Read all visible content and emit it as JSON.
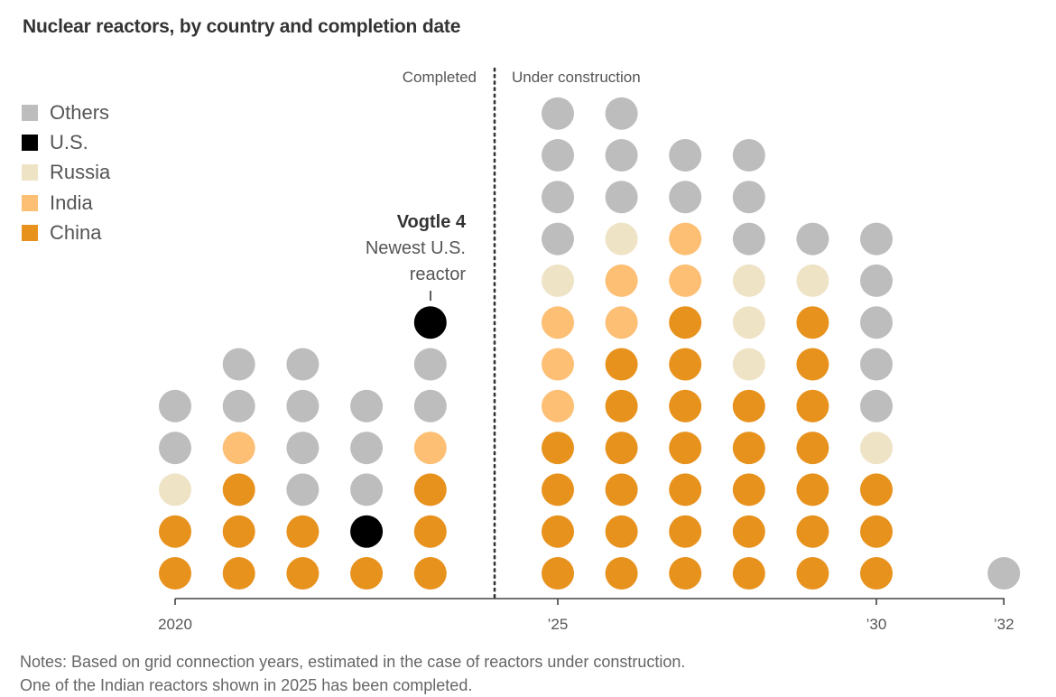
{
  "title": "Nuclear reactors, by country and completion date",
  "legend": [
    {
      "label": "Others",
      "color": "#bdbdbd",
      "icon": "square-swatch"
    },
    {
      "label": "U.S.",
      "color": "#000000",
      "icon": "square-swatch"
    },
    {
      "label": "Russia",
      "color": "#efe3c6",
      "icon": "square-swatch"
    },
    {
      "label": "India",
      "color": "#fcbf74",
      "icon": "square-swatch"
    },
    {
      "label": "China",
      "color": "#e8921e",
      "icon": "square-swatch"
    }
  ],
  "phases": {
    "completed_label": "Completed",
    "under_construction_label": "Under construction",
    "divider_after_year": 2024
  },
  "annotation": {
    "title": "Vogtle 4",
    "line1": "Newest U.S.",
    "line2": "reactor",
    "year": 2024,
    "country": "U.S."
  },
  "notes": {
    "line1": "Notes: Based on grid connection years, estimated in the case of reactors under construction.",
    "line2": "One of the Indian reactors shown in 2025 has been completed."
  },
  "chart_data": {
    "type": "dot-stack",
    "title": "Nuclear reactors, by country and completion date",
    "xlabel": "",
    "ylabel": "",
    "x_range": [
      2020,
      2032
    ],
    "x_ticks": [
      {
        "year": 2020,
        "label": "2020"
      },
      {
        "year": 2025,
        "label": "’25"
      },
      {
        "year": 2030,
        "label": "’30"
      },
      {
        "year": 2032,
        "label": "’32"
      }
    ],
    "stack_order_bottom_to_top": [
      "China",
      "U.S.",
      "India",
      "Russia",
      "Others"
    ],
    "categories": [
      "China",
      "U.S.",
      "Russia",
      "India",
      "Others"
    ],
    "columns": [
      {
        "year": 2020,
        "stack": [
          "China",
          "China",
          "Russia",
          "Others",
          "Others"
        ]
      },
      {
        "year": 2021,
        "stack": [
          "China",
          "China",
          "China",
          "India",
          "Others",
          "Others"
        ]
      },
      {
        "year": 2022,
        "stack": [
          "China",
          "China",
          "Others",
          "Others",
          "Others",
          "Others"
        ]
      },
      {
        "year": 2023,
        "stack": [
          "China",
          "U.S.",
          "Others",
          "Others",
          "Others"
        ]
      },
      {
        "year": 2024,
        "stack": [
          "China",
          "China",
          "China",
          "India",
          "Others",
          "Others",
          "U.S."
        ]
      },
      {
        "year": 2025,
        "stack": [
          "China",
          "China",
          "China",
          "China",
          "India",
          "India",
          "India",
          "Russia",
          "Others",
          "Others",
          "Others",
          "Others"
        ]
      },
      {
        "year": 2026,
        "stack": [
          "China",
          "China",
          "China",
          "China",
          "China",
          "China",
          "India",
          "India",
          "Russia",
          "Others",
          "Others",
          "Others"
        ]
      },
      {
        "year": 2027,
        "stack": [
          "China",
          "China",
          "China",
          "China",
          "China",
          "China",
          "China",
          "India",
          "India",
          "Others",
          "Others"
        ]
      },
      {
        "year": 2028,
        "stack": [
          "China",
          "China",
          "China",
          "China",
          "China",
          "Russia",
          "Russia",
          "Russia",
          "Others",
          "Others",
          "Others"
        ]
      },
      {
        "year": 2029,
        "stack": [
          "China",
          "China",
          "China",
          "China",
          "China",
          "China",
          "China",
          "Russia",
          "Others"
        ]
      },
      {
        "year": 2030,
        "stack": [
          "China",
          "China",
          "China",
          "Russia",
          "Others",
          "Others",
          "Others",
          "Others",
          "Others"
        ]
      },
      {
        "year": 2031,
        "stack": []
      },
      {
        "year": 2032,
        "stack": [
          "Others"
        ]
      }
    ],
    "series": [
      {
        "name": "China",
        "values": [
          2,
          3,
          2,
          1,
          3,
          4,
          6,
          7,
          5,
          7,
          3,
          0,
          0
        ]
      },
      {
        "name": "U.S.",
        "values": [
          0,
          0,
          0,
          1,
          1,
          0,
          0,
          0,
          0,
          0,
          0,
          0,
          0
        ]
      },
      {
        "name": "Russia",
        "values": [
          1,
          0,
          0,
          0,
          0,
          1,
          1,
          0,
          3,
          1,
          1,
          0,
          0
        ]
      },
      {
        "name": "India",
        "values": [
          0,
          1,
          0,
          0,
          1,
          3,
          2,
          2,
          0,
          0,
          0,
          0,
          0
        ]
      },
      {
        "name": "Others",
        "values": [
          2,
          2,
          4,
          3,
          2,
          4,
          3,
          2,
          3,
          1,
          5,
          0,
          1
        ]
      }
    ],
    "x": [
      2020,
      2021,
      2022,
      2023,
      2024,
      2025,
      2026,
      2027,
      2028,
      2029,
      2030,
      2031,
      2032
    ],
    "colors": {
      "China": "#e8921e",
      "U.S.": "#000000",
      "Russia": "#efe3c6",
      "India": "#fcbf74",
      "Others": "#bdbdbd"
    },
    "legend_position": "top-left"
  }
}
